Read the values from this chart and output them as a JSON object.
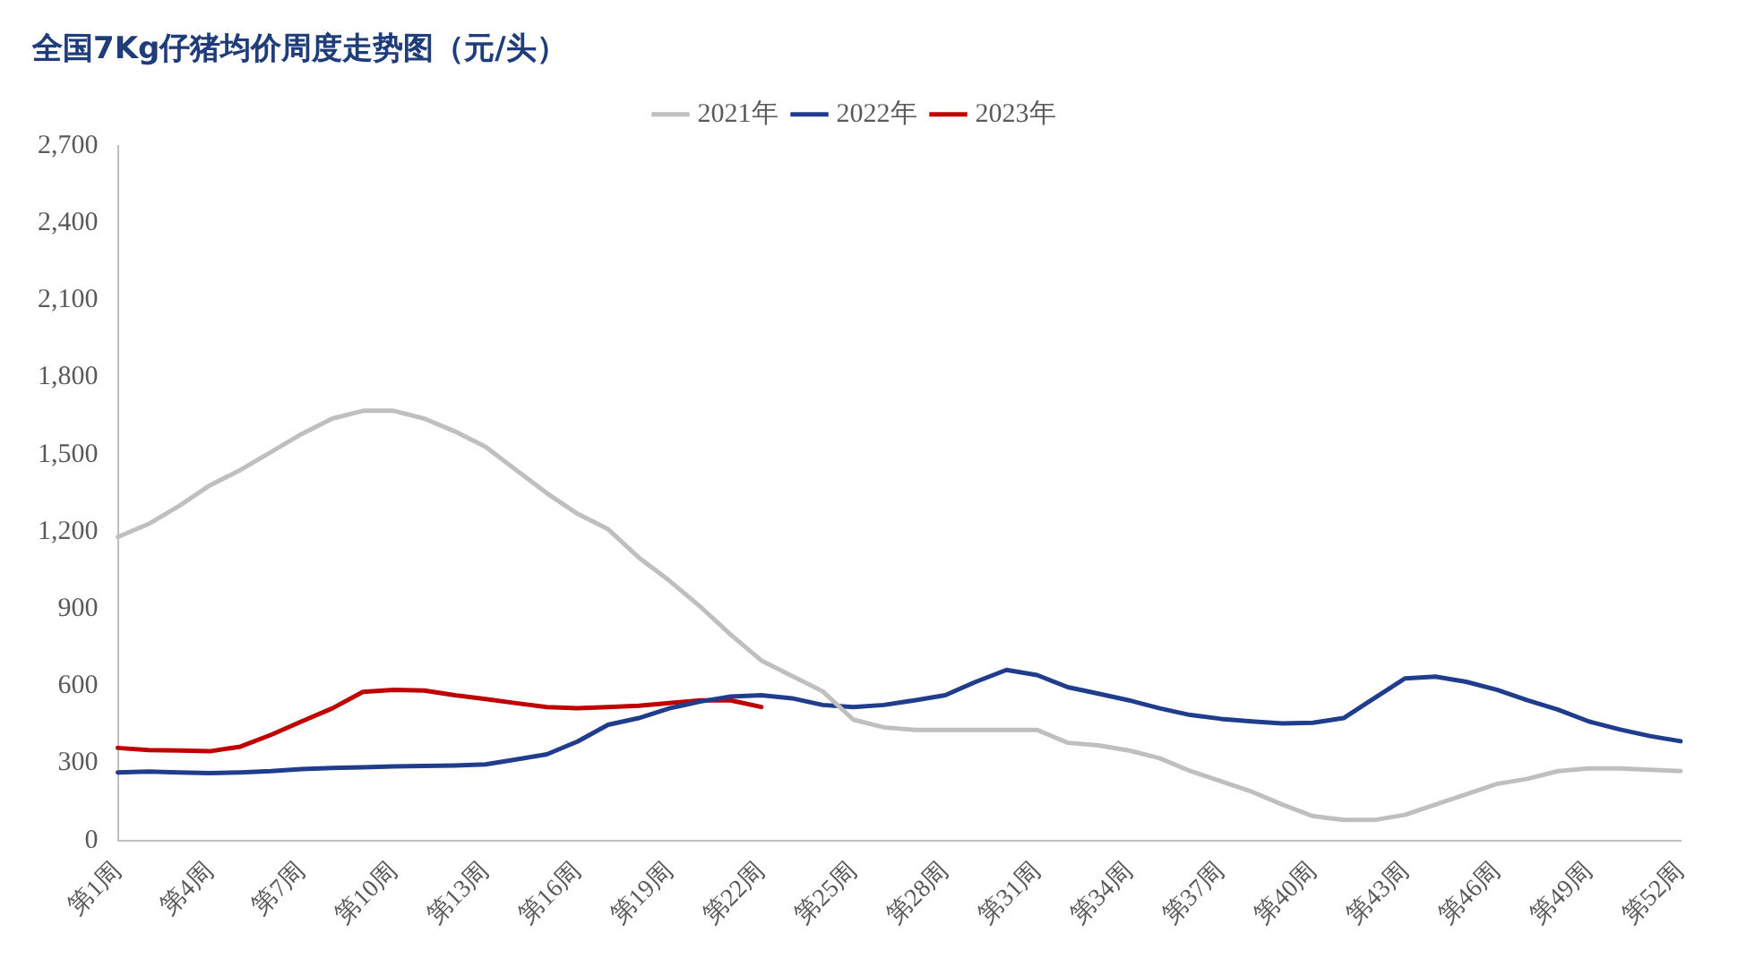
{
  "chart_data": {
    "type": "line",
    "title": "全国7Kg仔猪均价周度走势图（元/头）",
    "categories": [
      "第1周",
      null,
      null,
      "第4周",
      null,
      null,
      "第7周",
      null,
      null,
      "第10周",
      null,
      null,
      "第13周",
      null,
      null,
      "第16周",
      null,
      null,
      "第19周",
      null,
      null,
      "第22周",
      null,
      null,
      "第25周",
      null,
      null,
      "第28周",
      null,
      null,
      "第31周",
      null,
      null,
      "第34周",
      null,
      null,
      "第37周",
      null,
      null,
      "第40周",
      null,
      null,
      "第43周",
      null,
      null,
      "第46周",
      null,
      null,
      "第49周",
      null,
      null,
      "第52周"
    ],
    "series": [
      {
        "name": "2021年",
        "color": "#bfbfbf",
        "values": [
          1180,
          1230,
          1300,
          1380,
          1440,
          1510,
          1580,
          1640,
          1670,
          1670,
          1640,
          1590,
          1530,
          1440,
          1350,
          1270,
          1210,
          1100,
          1010,
          910,
          800,
          700,
          640,
          580,
          470,
          440,
          430,
          430,
          430,
          430,
          430,
          380,
          370,
          350,
          320,
          270,
          230,
          190,
          140,
          95,
          80,
          80,
          100,
          140,
          180,
          220,
          240,
          270,
          280,
          280,
          275,
          270
        ]
      },
      {
        "name": "2022年",
        "color": "#1f3d8c",
        "values": [
          265,
          268,
          265,
          262,
          265,
          270,
          278,
          282,
          285,
          288,
          290,
          292,
          296,
          315,
          335,
          385,
          450,
          476,
          514,
          540,
          560,
          565,
          553,
          527,
          519,
          527,
          545,
          565,
          617,
          663,
          643,
          596,
          571,
          545,
          514,
          488,
          473,
          463,
          455,
          458,
          476,
          553,
          630,
          637,
          617,
          586,
          545,
          509,
          463,
          432,
          406,
          386
        ]
      },
      {
        "name": "2023年",
        "color": "#c00000",
        "values": [
          360,
          352,
          350,
          347,
          365,
          411,
          463,
          514,
          578,
          586,
          583,
          565,
          550,
          534,
          519,
          514,
          519,
          524,
          534,
          545,
          545,
          519,
          null,
          null,
          null,
          null,
          null,
          null,
          null,
          null,
          null,
          null,
          null,
          null,
          null,
          null,
          null,
          null,
          null,
          null,
          null,
          null,
          null,
          null,
          null,
          null,
          null,
          null,
          null,
          null,
          null,
          null
        ]
      }
    ],
    "ylim": [
      0,
      2700
    ],
    "yticks": [
      0,
      300,
      600,
      900,
      {
        "value": 1200,
        "label": "1,200"
      },
      {
        "value": 1500,
        "label": "1,500"
      },
      {
        "value": 1800,
        "label": "1,800"
      },
      {
        "value": 2100,
        "label": "2,100"
      },
      {
        "value": 2400,
        "label": "2,400"
      },
      {
        "value": 2700,
        "label": "2,700"
      }
    ],
    "grid": false,
    "legend": "top",
    "marker": "none",
    "line_style": "solid"
  }
}
